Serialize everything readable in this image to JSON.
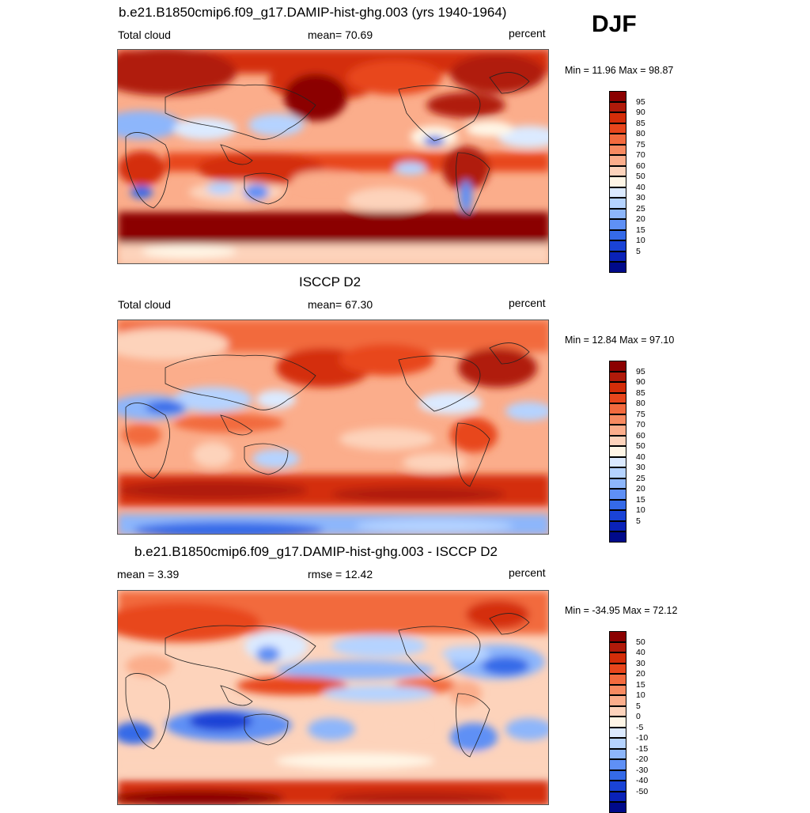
{
  "season": "DJF",
  "panels": [
    {
      "title": "b.e21.B1850cmip6.f09_g17.DAMIP-hist-ghg.003 (yrs 1940-1964)",
      "left_text": "Total cloud",
      "center_text": "mean=  70.69",
      "right_text": "percent",
      "minmax": "Min =  11.96 Max =  98.87",
      "colorbar": {
        "colors": [
          "#8b0000",
          "#b01a0a",
          "#d42d09",
          "#e8461c",
          "#f26a3e",
          "#f78a61",
          "#fbad8b",
          "#fdd3bb",
          "#fff6e6",
          "#dbeaff",
          "#b5d3ff",
          "#8db6fb",
          "#5f90f5",
          "#356ae8",
          "#1a43d6",
          "#0a22b8",
          "#000a8a"
        ],
        "labels": [
          "95",
          "90",
          "85",
          "80",
          "75",
          "70",
          "60",
          "50",
          "40",
          "30",
          "25",
          "20",
          "15",
          "10",
          "5"
        ]
      }
    },
    {
      "title": "ISCCP D2",
      "left_text": "Total cloud",
      "center_text": "mean=  67.30",
      "right_text": "percent",
      "minmax": "Min =  12.84 Max =  97.10",
      "colorbar": {
        "colors": [
          "#8b0000",
          "#b01a0a",
          "#d42d09",
          "#e8461c",
          "#f26a3e",
          "#f78a61",
          "#fbad8b",
          "#fdd3bb",
          "#fff6e6",
          "#dbeaff",
          "#b5d3ff",
          "#8db6fb",
          "#5f90f5",
          "#356ae8",
          "#1a43d6",
          "#0a22b8",
          "#000a8a"
        ],
        "labels": [
          "95",
          "90",
          "85",
          "80",
          "75",
          "70",
          "60",
          "50",
          "40",
          "30",
          "25",
          "20",
          "15",
          "10",
          "5"
        ]
      }
    },
    {
      "title": "b.e21.B1850cmip6.f09_g17.DAMIP-hist-ghg.003 - ISCCP D2",
      "left_text": "mean =   3.39",
      "center_text": "rmse =  12.42",
      "right_text": "percent",
      "minmax": "Min = -34.95 Max =  72.12",
      "colorbar": {
        "colors": [
          "#8b0000",
          "#b01a0a",
          "#d42d09",
          "#e8461c",
          "#f26a3e",
          "#f78a61",
          "#fbad8b",
          "#fdd3bb",
          "#fff6e6",
          "#dbeaff",
          "#b5d3ff",
          "#8db6fb",
          "#5f90f5",
          "#356ae8",
          "#1a43d6",
          "#0a22b8",
          "#000a8a"
        ],
        "labels": [
          "50",
          "40",
          "30",
          "20",
          "15",
          "10",
          "5",
          "0",
          "-5",
          "-10",
          "-15",
          "-20",
          "-30",
          "-40",
          "-50"
        ]
      }
    }
  ]
}
